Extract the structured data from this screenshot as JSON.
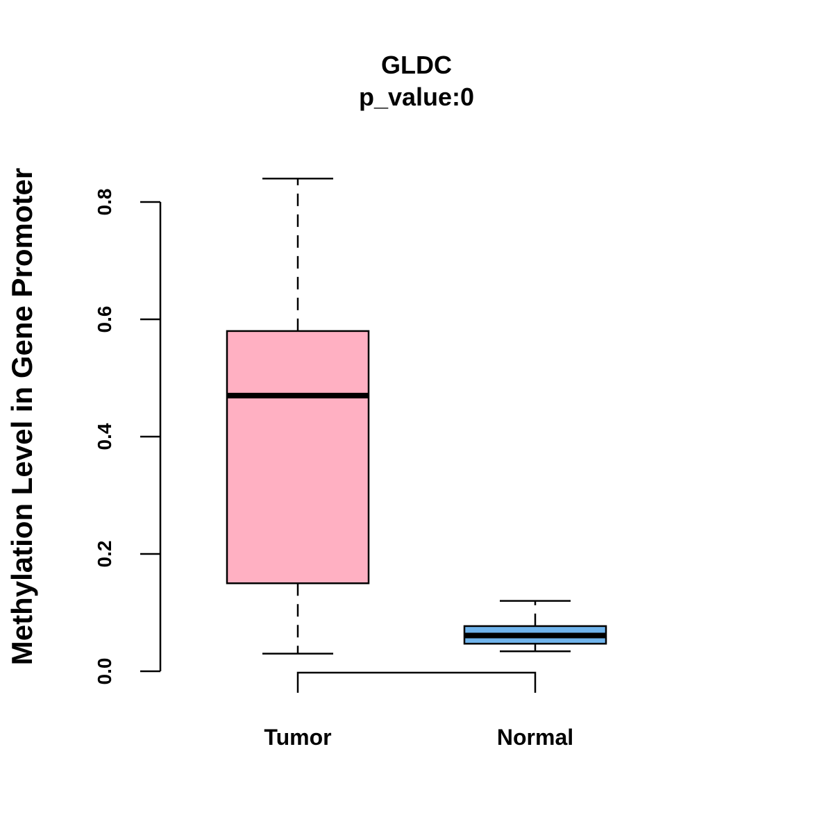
{
  "chart_data": {
    "type": "box",
    "title": "GLDC",
    "subtitle": "p_value:0",
    "xlabel": "",
    "ylabel": "Methylation Level in Gene Promoter",
    "ylim": [
      0.0,
      0.8
    ],
    "yticks": [
      "0.0",
      "0.2",
      "0.4",
      "0.6",
      "0.8"
    ],
    "grid": false,
    "categories": [
      "Tumor",
      "Normal"
    ],
    "boxes": [
      {
        "category": "Tumor",
        "min": 0.03,
        "q1": 0.15,
        "median": 0.47,
        "q3": 0.58,
        "max": 0.84,
        "color": "#FFB0C2"
      },
      {
        "category": "Normal",
        "min": 0.034,
        "q1": 0.047,
        "median": 0.061,
        "q3": 0.077,
        "max": 0.12,
        "color": "#70B4EC"
      }
    ],
    "comparison_bracket": {
      "between": [
        "Tumor",
        "Normal"
      ]
    }
  }
}
